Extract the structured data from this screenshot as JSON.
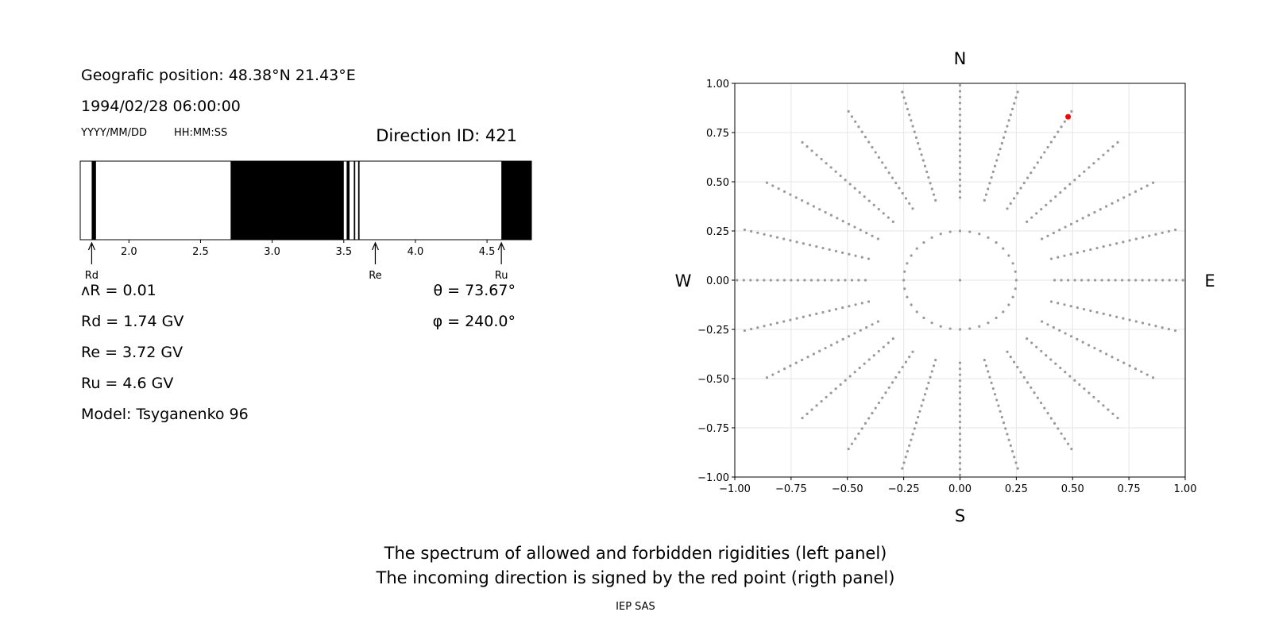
{
  "info": {
    "position": "Geografic position: 48.38°N 21.43°E",
    "datetime": "1994/02/28 06:00:00",
    "date_format": "YYYY/MM/DD",
    "time_format": "HH:MM:SS",
    "direction_id": "Direction ID: 421",
    "delta_r": "ᴧR = 0.01",
    "theta": "θ = 73.67°",
    "rd_value": "Rd = 1.74 GV",
    "phi": "φ = 240.0°",
    "re_value": "Re = 3.72 GV",
    "ru_value": "Ru = 4.6 GV",
    "model": "Model: Tsyganenko 96"
  },
  "caption": {
    "line1": "The spectrum of allowed and forbidden rigidities (left panel)",
    "line2": "The incoming direction is signed by the red point (rigth panel)",
    "credit": "IEP SAS"
  },
  "chart_data": [
    {
      "type": "spectrum",
      "xlim": [
        1.66,
        4.81
      ],
      "ticks": [
        2.0,
        2.5,
        3.0,
        3.5,
        4.0,
        4.5
      ],
      "tick_labels": [
        "2.0",
        "2.5",
        "3.0",
        "3.5",
        "4.0",
        "4.5"
      ],
      "forbidden_bands": [
        [
          1.74,
          1.77
        ],
        [
          2.71,
          3.5
        ],
        [
          3.52,
          3.54
        ],
        [
          3.57,
          3.58
        ],
        [
          3.6,
          3.61
        ],
        [
          4.6,
          4.81
        ]
      ],
      "colors": {
        "allowed": "#ffffff",
        "forbidden": "#000000"
      },
      "markers": [
        {
          "label": "Rd",
          "value": 1.74
        },
        {
          "label": "Re",
          "value": 3.72
        },
        {
          "label": "Ru",
          "value": 4.6
        }
      ]
    },
    {
      "type": "scatter",
      "xlim": [
        -1.0,
        1.0
      ],
      "ylim": [
        -1.0,
        1.0
      ],
      "ticks": [
        -1.0,
        -0.75,
        -0.5,
        -0.25,
        0.0,
        0.25,
        0.5,
        0.75,
        1.0
      ],
      "tick_labels": [
        "−1.00",
        "−0.75",
        "−0.50",
        "−0.25",
        "0.00",
        "0.25",
        "0.50",
        "0.75",
        "1.00"
      ],
      "grid": true,
      "compass": {
        "north": "N",
        "south": "S",
        "west": "W",
        "east": "E"
      },
      "pattern": {
        "inner_ring_radius": 0.25,
        "inner_ring_point_count": 36,
        "spoke_count": 24,
        "spoke_start_radius": 0.42,
        "spoke_end_radius": 1.0,
        "center_point": [
          0.0,
          0.0
        ]
      },
      "colors": {
        "points": "#999999",
        "highlight": "#ff0000",
        "grid": "#e6e6e6"
      },
      "highlight_point": {
        "x": 0.48,
        "y": 0.83
      }
    }
  ]
}
